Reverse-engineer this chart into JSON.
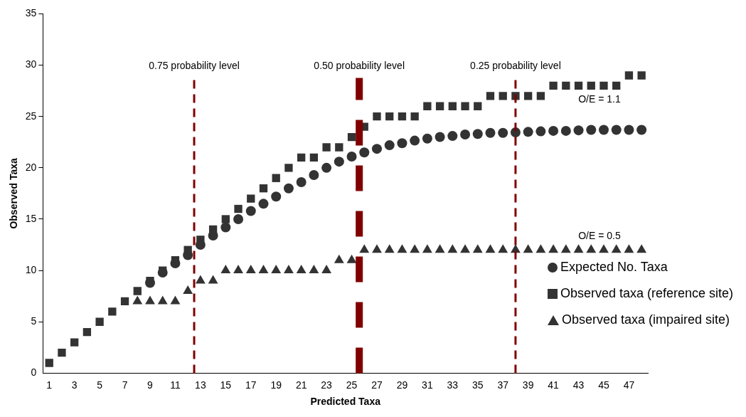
{
  "chart_data": {
    "type": "scatter",
    "xlabel": "Predicted Taxa",
    "ylabel": "Observed Taxa",
    "x": [
      1,
      2,
      3,
      4,
      5,
      6,
      7,
      8,
      9,
      10,
      11,
      12,
      13,
      14,
      15,
      16,
      17,
      18,
      19,
      20,
      21,
      22,
      23,
      24,
      25,
      26,
      27,
      28,
      29,
      30,
      31,
      32,
      33,
      34,
      35,
      36,
      37,
      38,
      39,
      40,
      41,
      42,
      43,
      44,
      45,
      46,
      47,
      48
    ],
    "xlim": [
      0.5,
      48.5
    ],
    "xticks": [
      1,
      3,
      5,
      7,
      9,
      11,
      13,
      15,
      17,
      19,
      21,
      23,
      25,
      27,
      29,
      31,
      33,
      35,
      37,
      39,
      41,
      43,
      45,
      47
    ],
    "ylim": [
      0,
      35
    ],
    "yticks": [
      0,
      5,
      10,
      15,
      20,
      25,
      30,
      35
    ],
    "grid": false,
    "legend": "bottom right",
    "series": [
      {
        "name": "Expected No. Taxa",
        "color": "#333333",
        "marker": "circle",
        "values": [
          null,
          null,
          null,
          null,
          null,
          null,
          null,
          null,
          8.8,
          9.8,
          10.7,
          11.5,
          12.5,
          13.4,
          14.2,
          15.0,
          15.8,
          16.5,
          17.2,
          18.0,
          18.6,
          19.3,
          20.0,
          20.6,
          21.1,
          21.5,
          21.85,
          22.2,
          22.4,
          22.65,
          22.85,
          23.0,
          23.1,
          23.25,
          23.3,
          23.4,
          23.4,
          23.45,
          23.5,
          23.55,
          23.6,
          23.6,
          23.65,
          23.7,
          23.7,
          23.7,
          23.7,
          23.7
        ]
      },
      {
        "name": "Observed taxa (reference site)",
        "color": "#333333",
        "marker": "square",
        "values": [
          1,
          2,
          3,
          4,
          5,
          6,
          7,
          8,
          9,
          10,
          11,
          12,
          13,
          14,
          15,
          16,
          17,
          18,
          19,
          20,
          21,
          21,
          22,
          22,
          23,
          24,
          25,
          25,
          25,
          25,
          26,
          26,
          26,
          26,
          26,
          27,
          27,
          27,
          27,
          27,
          28,
          28,
          28,
          28,
          28,
          28,
          29,
          29
        ]
      },
      {
        "name": "Observed taxa (impaired site)",
        "color": "#333333",
        "marker": "triangle",
        "values": [
          null,
          null,
          null,
          null,
          null,
          null,
          null,
          7,
          7,
          7,
          7,
          8,
          9,
          9,
          10,
          10,
          10,
          10,
          10,
          10,
          10,
          10,
          10,
          11,
          11,
          12,
          12,
          12,
          12,
          12,
          12,
          12,
          12,
          12,
          12,
          12,
          12,
          12,
          12,
          12,
          12,
          12,
          12,
          12,
          12,
          12,
          12,
          12
        ]
      }
    ],
    "ref_lines": [
      {
        "axis": "x",
        "value": 12.5,
        "label": "0.75 probability level",
        "color": "#800000",
        "line_style": "dashed"
      },
      {
        "axis": "x",
        "value": 25.6,
        "label": "0.50 probability level",
        "color": "#800000",
        "line_style": "dashed"
      },
      {
        "axis": "x",
        "value": 38,
        "label": "0.25 probability level",
        "color": "#800000",
        "line_style": "dashed"
      }
    ],
    "annotations": [
      "O/E = 1.1",
      "O/E = 0.5"
    ]
  }
}
